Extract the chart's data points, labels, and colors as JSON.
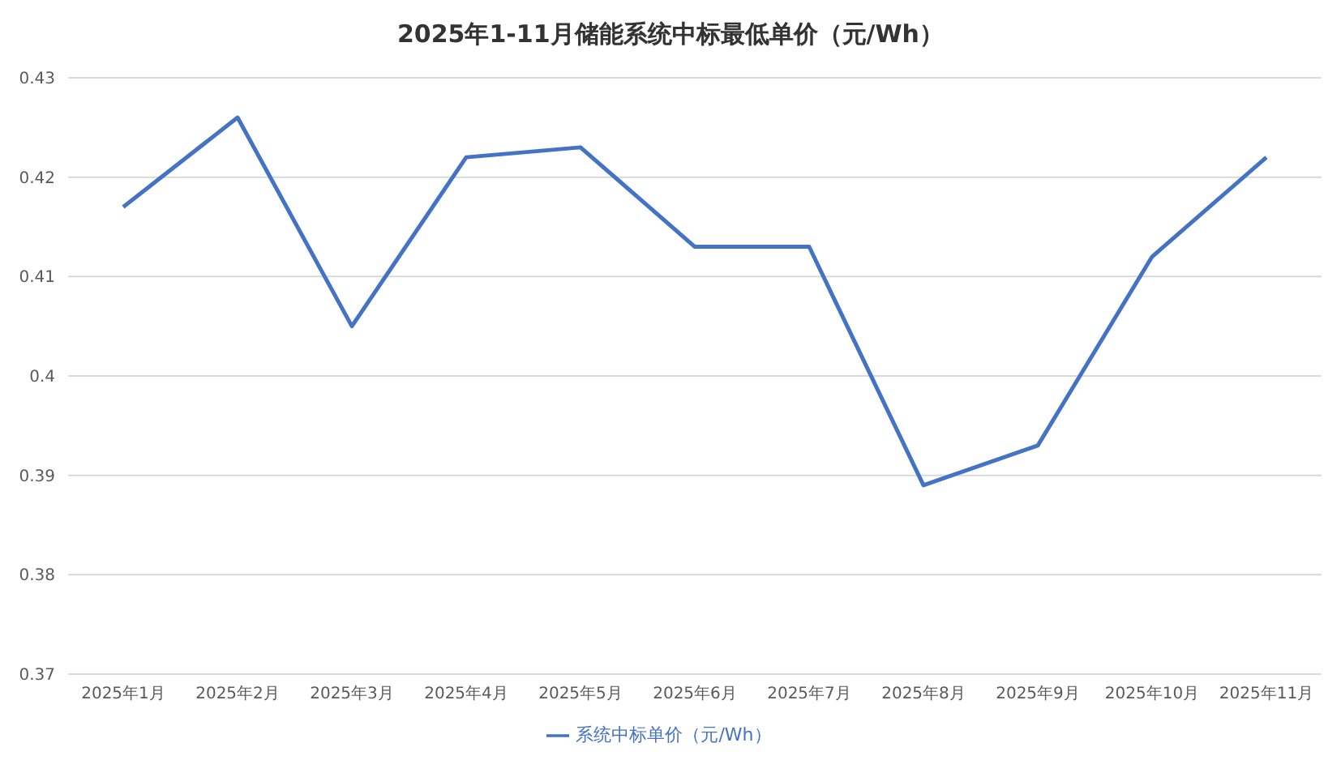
{
  "chart_data": {
    "type": "line",
    "title": "2025年1-11月储能系统中标最低单价（元/Wh）",
    "categories": [
      "2025年1月",
      "2025年2月",
      "2025年3月",
      "2025年4月",
      "2025年5月",
      "2025年6月",
      "2025年7月",
      "2025年8月",
      "2025年9月",
      "2025年10月",
      "2025年11月"
    ],
    "series": [
      {
        "name": "系统中标单价（元/Wh）",
        "color": "#4472c4",
        "values": [
          0.417,
          0.426,
          0.405,
          0.422,
          0.423,
          0.413,
          0.413,
          0.389,
          0.393,
          0.412,
          0.422
        ]
      }
    ],
    "ylim": [
      0.37,
      0.43
    ],
    "yticks": [
      0.37,
      0.38,
      0.39,
      0.4,
      0.41,
      0.42,
      0.43
    ],
    "grid": "y",
    "legend": "bottom",
    "marker": "none",
    "line_style": "solid"
  }
}
